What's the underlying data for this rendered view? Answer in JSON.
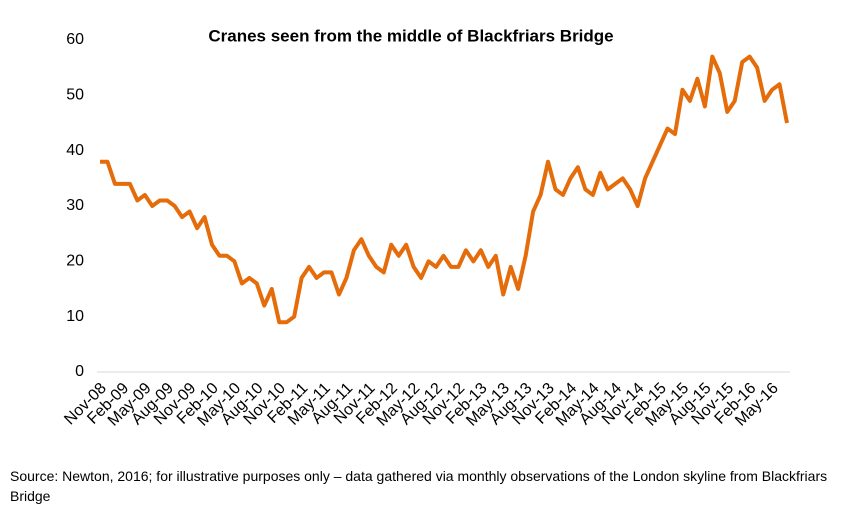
{
  "chart_data": {
    "type": "line",
    "title": "Cranes seen from the middle of Blackfriars Bridge",
    "categories": [
      "Nov-08",
      null,
      null,
      "Feb-09",
      null,
      null,
      "May-09",
      null,
      null,
      "Aug-09",
      null,
      null,
      "Nov-09",
      null,
      null,
      "Feb-10",
      null,
      null,
      "May-10",
      null,
      null,
      "Aug-10",
      null,
      null,
      "Nov-10",
      null,
      null,
      "Feb-11",
      null,
      null,
      "May-11",
      null,
      null,
      "Aug-11",
      null,
      null,
      "Nov-11",
      null,
      null,
      "Feb-12",
      null,
      null,
      "May-12",
      null,
      null,
      "Aug-12",
      null,
      null,
      "Nov-12",
      null,
      null,
      "Feb-13",
      null,
      null,
      "May-13",
      null,
      null,
      "Aug-13",
      null,
      null,
      "Nov-13",
      null,
      null,
      "Feb-14",
      null,
      null,
      "May-14",
      null,
      null,
      "Aug-14",
      null,
      null,
      "Nov-14",
      null,
      null,
      "Feb-15",
      null,
      null,
      "May-15",
      null,
      null,
      "Aug-15",
      null,
      null,
      "Nov-15",
      null,
      null,
      "Feb-16",
      null,
      null,
      "May-16",
      null,
      null
    ],
    "values": [
      38,
      38,
      34,
      34,
      34,
      31,
      32,
      30,
      31,
      31,
      30,
      28,
      29,
      26,
      28,
      23,
      21,
      21,
      20,
      16,
      17,
      16,
      12,
      15,
      9,
      9,
      10,
      17,
      19,
      17,
      18,
      18,
      14,
      17,
      22,
      24,
      21,
      19,
      18,
      23,
      21,
      23,
      19,
      17,
      20,
      19,
      21,
      19,
      19,
      22,
      20,
      22,
      19,
      21,
      14,
      19,
      15,
      21,
      29,
      32,
      38,
      33,
      32,
      35,
      37,
      33,
      32,
      36,
      33,
      34,
      35,
      33,
      30,
      35,
      38,
      41,
      44,
      43,
      51,
      49,
      53,
      48,
      57,
      54,
      47,
      49,
      56,
      57,
      55,
      49,
      51,
      52,
      45
    ],
    "color": "#e46c0a",
    "ylim": [
      0,
      60
    ],
    "yticks": [
      0,
      10,
      20,
      30,
      40,
      50,
      60
    ],
    "grid": false,
    "source": "Source: Newton, 2016; for illustrative purposes only – data gathered via monthly observations of the London skyline from Blackfriars Bridge"
  }
}
